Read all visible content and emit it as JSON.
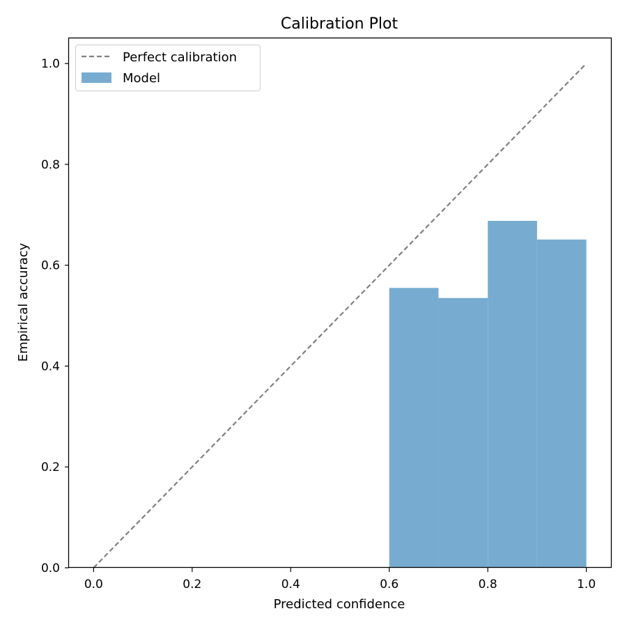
{
  "chart_data": {
    "type": "bar",
    "title": "Calibration Plot",
    "xlabel": "Predicted confidence",
    "ylabel": "Empirical accuracy",
    "xlim": [
      -0.05,
      1.05
    ],
    "ylim": [
      0.0,
      1.05
    ],
    "xticks": [
      "0.0",
      "0.2",
      "0.4",
      "0.6",
      "0.8",
      "1.0"
    ],
    "yticks": [
      "0.0",
      "0.2",
      "0.4",
      "0.6",
      "0.8",
      "1.0"
    ],
    "grid": false,
    "legend_position": "top-left",
    "legend": {
      "diagonal_label": "Perfect calibration",
      "bars_label": "Model"
    },
    "diagonal": {
      "x": [
        0.0,
        1.0
      ],
      "y": [
        0.0,
        1.0
      ],
      "color": "#808080",
      "style": "dashed"
    },
    "bars": {
      "color": "#77acd0",
      "bin_edges": [
        0.6,
        0.7,
        0.8,
        0.9,
        1.0
      ],
      "values": [
        0.555,
        0.535,
        0.688,
        0.651
      ]
    }
  }
}
